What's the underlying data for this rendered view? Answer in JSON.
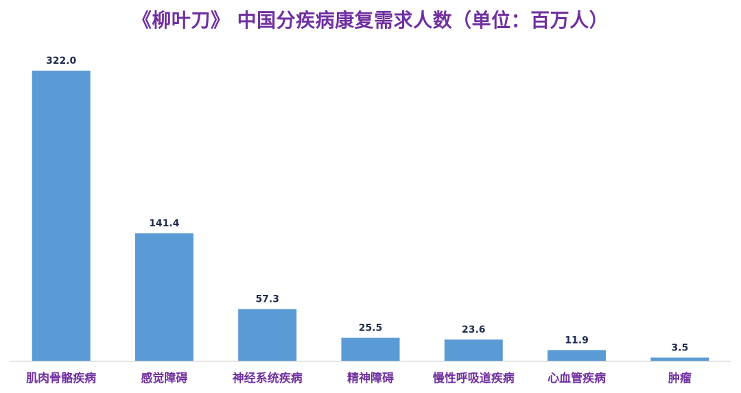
{
  "chart_data": {
    "type": "bar",
    "title": "《柳叶刀》 中国分疾病康复需求人数（单位：百万人）",
    "categories": [
      "肌肉骨骼疾病",
      "感觉障碍",
      "神经系统疾病",
      "精神障碍",
      "慢性呼吸道疾病",
      "心血管疾病",
      "肿瘤"
    ],
    "values": [
      322.0,
      141.4,
      57.3,
      25.5,
      23.6,
      11.9,
      3.5
    ],
    "value_labels": [
      "322.0",
      "141.4",
      "57.3",
      "25.5",
      "23.6",
      "11.9",
      "3.5"
    ],
    "ylim": [
      0,
      322.0
    ],
    "grid": false,
    "legend": "none",
    "colors": {
      "bar": "#5b9bd5",
      "title": "#7030a0",
      "category_label": "#7030a0",
      "value_label": "#1f2d4d",
      "axis": "#bfbfbf"
    }
  }
}
